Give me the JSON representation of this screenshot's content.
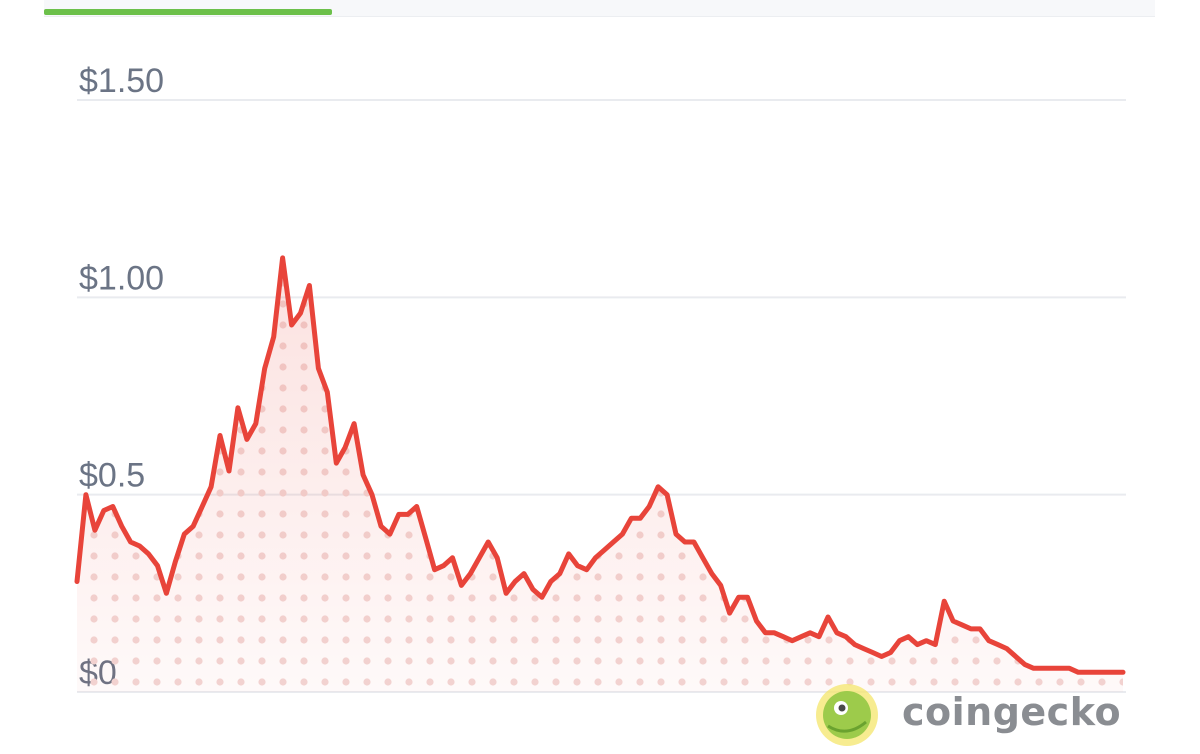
{
  "colors": {
    "line": "#e8443a",
    "tab_active": "#6cc04a",
    "grid": "#e9ebef",
    "tick_label": "#6b7485",
    "brand_green": "#8dc63f",
    "brand_yellow": "#f4e66b"
  },
  "watermark": {
    "text": "coingecko",
    "logo_icon": "gecko-logo"
  },
  "chart_data": {
    "type": "area",
    "title": "",
    "xlabel": "",
    "ylabel": "",
    "ylim": [
      0,
      1.5
    ],
    "y_ticks": [
      {
        "value": 1.5,
        "label": "$1.50"
      },
      {
        "value": 1.0,
        "label": "$1.00"
      },
      {
        "value": 0.5,
        "label": "$0.5"
      },
      {
        "value": 0,
        "label": "$0"
      }
    ],
    "grid": true,
    "legend": "none",
    "series": [
      {
        "values": [
          0.28,
          0.5,
          0.41,
          0.46,
          0.47,
          0.42,
          0.38,
          0.37,
          0.35,
          0.32,
          0.25,
          0.33,
          0.4,
          0.42,
          0.47,
          0.52,
          0.65,
          0.56,
          0.72,
          0.64,
          0.68,
          0.82,
          0.9,
          1.1,
          0.93,
          0.96,
          1.03,
          0.82,
          0.76,
          0.58,
          0.62,
          0.68,
          0.55,
          0.5,
          0.42,
          0.4,
          0.45,
          0.45,
          0.47,
          0.39,
          0.31,
          0.32,
          0.34,
          0.27,
          0.3,
          0.34,
          0.38,
          0.34,
          0.25,
          0.28,
          0.3,
          0.26,
          0.24,
          0.28,
          0.3,
          0.35,
          0.32,
          0.31,
          0.34,
          0.36,
          0.38,
          0.4,
          0.44,
          0.44,
          0.47,
          0.52,
          0.5,
          0.4,
          0.38,
          0.38,
          0.34,
          0.3,
          0.27,
          0.2,
          0.24,
          0.24,
          0.18,
          0.15,
          0.15,
          0.14,
          0.13,
          0.14,
          0.15,
          0.14,
          0.19,
          0.15,
          0.14,
          0.12,
          0.11,
          0.1,
          0.09,
          0.1,
          0.13,
          0.14,
          0.12,
          0.13,
          0.12,
          0.23,
          0.18,
          0.17,
          0.16,
          0.16,
          0.13,
          0.12,
          0.11,
          0.09,
          0.07,
          0.06,
          0.06,
          0.06,
          0.06,
          0.06,
          0.05,
          0.05,
          0.05,
          0.05,
          0.05,
          0.05
        ]
      }
    ]
  }
}
